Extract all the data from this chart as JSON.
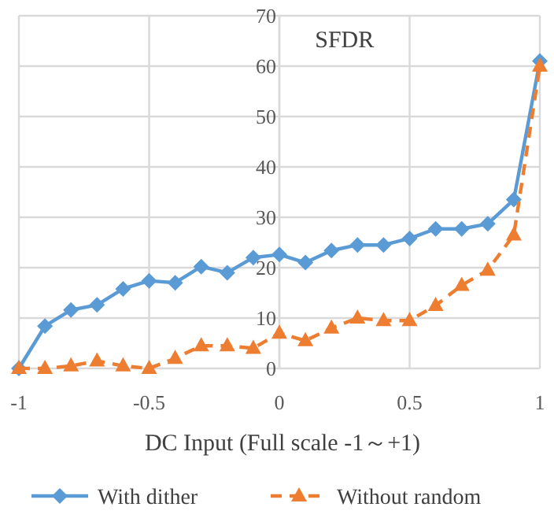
{
  "chart_data": {
    "type": "line",
    "title": "SFDR",
    "xlabel": "DC Input (Full scale -1～+1)",
    "x": [
      -1,
      -0.9,
      -0.8,
      -0.7,
      -0.6,
      -0.5,
      -0.4,
      -0.3,
      -0.2,
      -0.1,
      0,
      0.1,
      0.2,
      0.3,
      0.4,
      0.5,
      0.6,
      0.7,
      0.8,
      0.9,
      1
    ],
    "series": [
      {
        "name": "With dither",
        "color": "#5b9bd5",
        "marker": "diamond",
        "line_style": "solid",
        "values": [
          0,
          8.4,
          11.6,
          12.6,
          15.8,
          17.4,
          17,
          20.2,
          19,
          22,
          22.6,
          21,
          23.4,
          24.5,
          24.5,
          25.8,
          27.7,
          27.7,
          28.7,
          33.5,
          61
        ]
      },
      {
        "name": "Without random",
        "color": "#ed7d31",
        "marker": "triangle",
        "line_style": "dashed",
        "values": [
          0,
          0,
          0.5,
          1.5,
          0.5,
          0,
          2,
          4.5,
          4.5,
          4,
          7,
          5.5,
          8,
          10,
          9.5,
          9.5,
          12.5,
          16.5,
          19.5,
          26.5,
          60
        ]
      }
    ],
    "xlim": [
      -1,
      1
    ],
    "xticks": [
      -1,
      -0.5,
      0,
      0.5,
      1
    ],
    "ylim": [
      0,
      70
    ],
    "yticks": [
      0,
      10,
      20,
      30,
      40,
      50,
      60,
      70
    ],
    "grid": true,
    "legend": "bottom"
  }
}
